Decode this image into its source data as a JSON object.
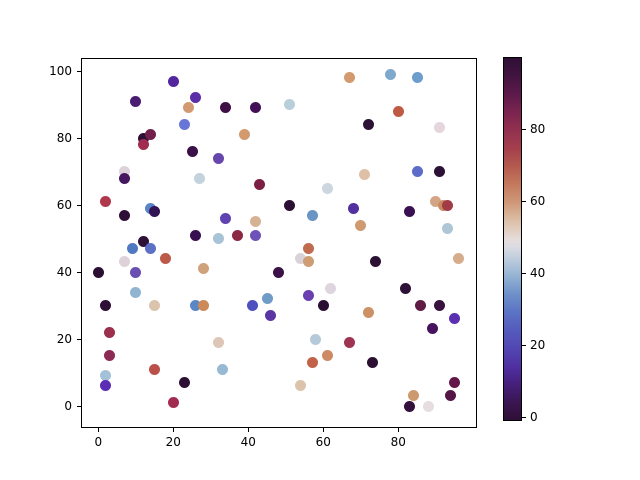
{
  "chart_data": {
    "type": "scatter",
    "title": "",
    "xlabel": "",
    "ylabel": "",
    "grid": false,
    "x_ticks": [
      0,
      20,
      40,
      60,
      80
    ],
    "y_ticks": [
      0,
      20,
      40,
      60,
      80,
      100
    ],
    "xlim": [
      -4.5,
      101
    ],
    "ylim": [
      -6.5,
      104
    ],
    "marker_diameter_px": 11,
    "points": [
      [
        20,
        97,
        "#5326a0"
      ],
      [
        26,
        92,
        "#5b2da6"
      ],
      [
        10,
        91,
        "#4a1d72"
      ],
      [
        24,
        89,
        "#d29a72"
      ],
      [
        34,
        89,
        "#400f45"
      ],
      [
        42,
        89,
        "#431055"
      ],
      [
        51,
        90,
        "#b9cedb"
      ],
      [
        67,
        98,
        "#d39a6f"
      ],
      [
        78,
        99,
        "#7fa8cd"
      ],
      [
        85,
        98,
        "#6d9dcb"
      ],
      [
        80,
        88,
        "#bf5b45"
      ],
      [
        72,
        84,
        "#2e1137"
      ],
      [
        91,
        83,
        "#e4d6dc"
      ],
      [
        23,
        84,
        "#6776d6"
      ],
      [
        12,
        80,
        "#2d1035"
      ],
      [
        14,
        81,
        "#721f4b"
      ],
      [
        12,
        78,
        "#a02c50"
      ],
      [
        39,
        81,
        "#d29a6d"
      ],
      [
        25,
        76,
        "#3a1048"
      ],
      [
        32,
        74,
        "#6747ad"
      ],
      [
        7,
        70,
        "#dcd3da"
      ],
      [
        7,
        68,
        "#45175f"
      ],
      [
        27,
        68,
        "#c3d3de"
      ],
      [
        43,
        66,
        "#7c1f44"
      ],
      [
        61,
        65,
        "#ccd6de"
      ],
      [
        2,
        61,
        "#b0384d"
      ],
      [
        51,
        60,
        "#2c1034"
      ],
      [
        68,
        59,
        "#5230a0"
      ],
      [
        57,
        57,
        "#6a94c4"
      ],
      [
        90,
        61,
        "#d4a584"
      ],
      [
        92,
        60,
        "#c98a62"
      ],
      [
        93,
        60,
        "#a13b45"
      ],
      [
        70,
        54,
        "#d09a70"
      ],
      [
        93,
        53,
        "#aec6d6"
      ],
      [
        14,
        59,
        "#5b83c8"
      ],
      [
        15,
        58,
        "#321455"
      ],
      [
        7,
        57,
        "#2e1036"
      ],
      [
        34,
        56,
        "#5f43b2"
      ],
      [
        42,
        55,
        "#d6b294"
      ],
      [
        32,
        50,
        "#a9c3d6"
      ],
      [
        37,
        51,
        "#8c2844"
      ],
      [
        42,
        51,
        "#6d52b8"
      ],
      [
        26,
        51,
        "#381050"
      ],
      [
        56,
        47,
        "#c06a50"
      ],
      [
        54,
        44,
        "#d8d3d9"
      ],
      [
        56,
        43,
        "#cf9d74"
      ],
      [
        18,
        44,
        "#bc5a49"
      ],
      [
        9,
        47,
        "#4f7ac2"
      ],
      [
        12,
        49,
        "#2e1137"
      ],
      [
        14,
        47,
        "#5c70c6"
      ],
      [
        7,
        43,
        "#ded2d8"
      ],
      [
        0,
        40,
        "#2b0f33"
      ],
      [
        10,
        40,
        "#6a4fb2"
      ],
      [
        28,
        41,
        "#d0a27c"
      ],
      [
        48,
        40,
        "#3b1147"
      ],
      [
        10,
        34,
        "#8fb5d3"
      ],
      [
        2,
        30,
        "#2e1036"
      ],
      [
        15,
        30,
        "#dbc4ae"
      ],
      [
        26,
        30,
        "#5a87c6"
      ],
      [
        28,
        30,
        "#cc8a59"
      ],
      [
        41,
        30,
        "#4d51c0"
      ],
      [
        45,
        32,
        "#6f9bc6"
      ],
      [
        46,
        27,
        "#5c35a5"
      ],
      [
        60,
        30,
        "#2b0f33"
      ],
      [
        56,
        33,
        "#6a3fb0"
      ],
      [
        62,
        35,
        "#ded5de"
      ],
      [
        74,
        43,
        "#2c1034"
      ],
      [
        96,
        44,
        "#d5ad8c"
      ],
      [
        82,
        35,
        "#2e1137"
      ],
      [
        86,
        30,
        "#5e1b43"
      ],
      [
        91,
        30,
        "#38113f"
      ],
      [
        95,
        26,
        "#5a2fb0"
      ],
      [
        89,
        23,
        "#47135f"
      ],
      [
        58,
        20,
        "#b5c9d9"
      ],
      [
        67,
        19,
        "#9e3352"
      ],
      [
        61,
        15,
        "#cd8a64"
      ],
      [
        57,
        13,
        "#c26248"
      ],
      [
        54,
        6,
        "#dcc3ac"
      ],
      [
        32,
        19,
        "#ddc6b5"
      ],
      [
        33,
        11,
        "#97bad4"
      ],
      [
        3,
        22,
        "#9c2f4e"
      ],
      [
        3,
        15,
        "#8c2a56"
      ],
      [
        2,
        9,
        "#a3c2d8"
      ],
      [
        2,
        6,
        "#5a2db4"
      ],
      [
        15,
        11,
        "#bb4f49"
      ],
      [
        23,
        7,
        "#2c1034"
      ],
      [
        20,
        1,
        "#a22c50"
      ],
      [
        72,
        28,
        "#cd9166"
      ],
      [
        73,
        13,
        "#2b1033"
      ],
      [
        84,
        3,
        "#cd9a6e"
      ],
      [
        83,
        0,
        "#33103d"
      ],
      [
        88,
        0,
        "#e7dce0"
      ],
      [
        95,
        7,
        "#64184a"
      ],
      [
        94,
        3,
        "#541647"
      ],
      [
        83,
        58,
        "#3a1052"
      ],
      [
        71,
        69,
        "#ddc0a6"
      ],
      [
        85,
        70,
        "#5c6cc8"
      ],
      [
        91,
        70,
        "#2d1035"
      ]
    ],
    "colorbar": {
      "ticks": [
        0,
        20,
        40,
        60,
        80
      ],
      "range": [
        0,
        100
      ],
      "colormap_name": "twilight_shifted",
      "gradient_stops": [
        {
          "v": 0,
          "color": "#2e0f36"
        },
        {
          "v": 5,
          "color": "#3a1653"
        },
        {
          "v": 10,
          "color": "#46207c"
        },
        {
          "v": 15,
          "color": "#4f31a2"
        },
        {
          "v": 20,
          "color": "#5247b4"
        },
        {
          "v": 25,
          "color": "#555cbd"
        },
        {
          "v": 30,
          "color": "#5c74c4"
        },
        {
          "v": 35,
          "color": "#6f92c9"
        },
        {
          "v": 40,
          "color": "#96b4d4"
        },
        {
          "v": 45,
          "color": "#c2cfdd"
        },
        {
          "v": 48,
          "color": "#dcdce4"
        },
        {
          "v": 50,
          "color": "#e5dcda"
        },
        {
          "v": 55,
          "color": "#dcc0a8"
        },
        {
          "v": 60,
          "color": "#cf9878"
        },
        {
          "v": 65,
          "color": "#c47a5e"
        },
        {
          "v": 70,
          "color": "#b55a4e"
        },
        {
          "v": 75,
          "color": "#a43f4d"
        },
        {
          "v": 80,
          "color": "#93304f"
        },
        {
          "v": 85,
          "color": "#7b2450"
        },
        {
          "v": 90,
          "color": "#5c1a4a"
        },
        {
          "v": 95,
          "color": "#421440"
        },
        {
          "v": 100,
          "color": "#2e0f36"
        }
      ]
    }
  }
}
